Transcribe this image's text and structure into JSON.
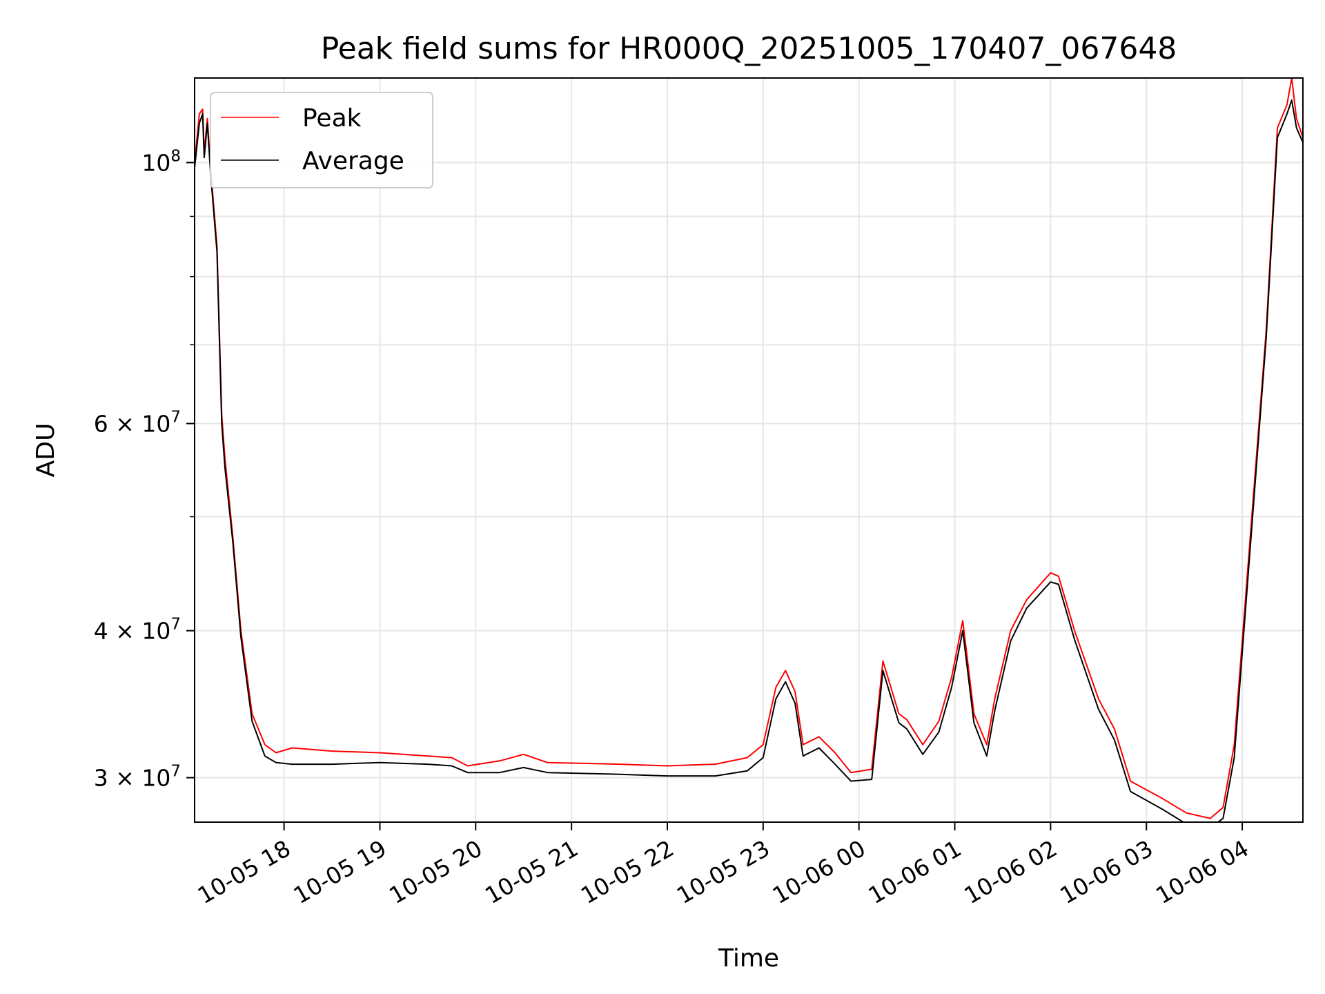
{
  "chart_data": {
    "type": "line",
    "title": "Peak field sums for HR000Q_20251005_170407_067648",
    "xlabel": "Time",
    "ylabel": "ADU",
    "x_axis_type": "time",
    "y_scale": "log",
    "xlim": [
      "2025-10-05 17:04",
      "2025-10-06 04:38"
    ],
    "ylim": [
      27500000,
      118000000
    ],
    "grid": true,
    "legend": {
      "placement": "top-left",
      "entries": [
        "Peak",
        "Average"
      ]
    },
    "x_ticks": [
      "10-05 18",
      "10-05 19",
      "10-05 20",
      "10-05 21",
      "10-05 22",
      "10-05 23",
      "10-06 00",
      "10-06 01",
      "10-06 02",
      "10-06 03",
      "10-06 04"
    ],
    "y_ticks": [
      {
        "value": 30000000,
        "mantissa": "3",
        "exponent": "7"
      },
      {
        "value": 40000000,
        "mantissa": "4",
        "exponent": "7"
      },
      {
        "value": 60000000,
        "mantissa": "6",
        "exponent": "7"
      },
      {
        "value": 100000000,
        "mantissa": "",
        "exponent": "8"
      }
    ],
    "y_minor_ticks": [
      50000000,
      70000000,
      80000000,
      90000000
    ],
    "series": [
      {
        "name": "Peak",
        "color": "#ff0000",
        "x": [
          "2025-10-05 17:04",
          "2025-10-05 17:07",
          "2025-10-05 17:09",
          "2025-10-05 17:10",
          "2025-10-05 17:12",
          "2025-10-05 17:14",
          "2025-10-05 17:18",
          "2025-10-05 17:21",
          "2025-10-05 17:23",
          "2025-10-05 17:28",
          "2025-10-05 17:33",
          "2025-10-05 17:40",
          "2025-10-05 17:48",
          "2025-10-05 17:55",
          "2025-10-05 18:05",
          "2025-10-05 18:30",
          "2025-10-05 19:00",
          "2025-10-05 19:30",
          "2025-10-05 19:45",
          "2025-10-05 19:55",
          "2025-10-05 20:15",
          "2025-10-05 20:30",
          "2025-10-05 20:45",
          "2025-10-05 21:30",
          "2025-10-05 22:00",
          "2025-10-05 22:30",
          "2025-10-05 22:50",
          "2025-10-05 23:00",
          "2025-10-05 23:08",
          "2025-10-05 23:14",
          "2025-10-05 23:20",
          "2025-10-05 23:25",
          "2025-10-05 23:35",
          "2025-10-05 23:45",
          "2025-10-05 23:55",
          "2025-10-06 00:08",
          "2025-10-06 00:15",
          "2025-10-06 00:25",
          "2025-10-06 00:30",
          "2025-10-06 00:40",
          "2025-10-06 00:50",
          "2025-10-06 00:58",
          "2025-10-06 01:05",
          "2025-10-06 01:12",
          "2025-10-06 01:20",
          "2025-10-06 01:25",
          "2025-10-06 01:35",
          "2025-10-06 01:45",
          "2025-10-06 02:00",
          "2025-10-06 02:05",
          "2025-10-06 02:15",
          "2025-10-06 02:30",
          "2025-10-06 02:40",
          "2025-10-06 02:50",
          "2025-10-06 03:10",
          "2025-10-06 03:25",
          "2025-10-06 03:40",
          "2025-10-06 03:48",
          "2025-10-06 03:55",
          "2025-10-06 04:05",
          "2025-10-06 04:15",
          "2025-10-06 04:22",
          "2025-10-06 04:28",
          "2025-10-06 04:31",
          "2025-10-06 04:34",
          "2025-10-06 04:38"
        ],
        "values": [
          100000000,
          110000000,
          111000000,
          102000000,
          109000000,
          99000000,
          85000000,
          61000000,
          56000000,
          48000000,
          40000000,
          34000000,
          32000000,
          31500000,
          31800000,
          31600000,
          31500000,
          31300000,
          31200000,
          30700000,
          31000000,
          31400000,
          30900000,
          30800000,
          30700000,
          30800000,
          31200000,
          32000000,
          35800000,
          37000000,
          35500000,
          32000000,
          32500000,
          31500000,
          30300000,
          30500000,
          37700000,
          34000000,
          33600000,
          32000000,
          33500000,
          36500000,
          40800000,
          34000000,
          32000000,
          35000000,
          40000000,
          42500000,
          44800000,
          44500000,
          40000000,
          35000000,
          33000000,
          29800000,
          28800000,
          28000000,
          27700000,
          28300000,
          32000000,
          48000000,
          72000000,
          107000000,
          112000000,
          118000000,
          109000000,
          105000000
        ]
      },
      {
        "name": "Average",
        "color": "#000000",
        "x": [
          "2025-10-05 17:04",
          "2025-10-05 17:07",
          "2025-10-05 17:09",
          "2025-10-05 17:10",
          "2025-10-05 17:12",
          "2025-10-05 17:14",
          "2025-10-05 17:18",
          "2025-10-05 17:21",
          "2025-10-05 17:23",
          "2025-10-05 17:28",
          "2025-10-05 17:33",
          "2025-10-05 17:40",
          "2025-10-05 17:48",
          "2025-10-05 17:55",
          "2025-10-05 18:05",
          "2025-10-05 18:30",
          "2025-10-05 19:00",
          "2025-10-05 19:30",
          "2025-10-05 19:45",
          "2025-10-05 19:55",
          "2025-10-05 20:15",
          "2025-10-05 20:30",
          "2025-10-05 20:45",
          "2025-10-05 21:30",
          "2025-10-05 22:00",
          "2025-10-05 22:30",
          "2025-10-05 22:50",
          "2025-10-05 23:00",
          "2025-10-05 23:08",
          "2025-10-05 23:14",
          "2025-10-05 23:20",
          "2025-10-05 23:25",
          "2025-10-05 23:35",
          "2025-10-05 23:45",
          "2025-10-05 23:55",
          "2025-10-06 00:08",
          "2025-10-06 00:15",
          "2025-10-06 00:25",
          "2025-10-06 00:30",
          "2025-10-06 00:40",
          "2025-10-06 00:50",
          "2025-10-06 00:58",
          "2025-10-06 01:05",
          "2025-10-06 01:12",
          "2025-10-06 01:20",
          "2025-10-06 01:25",
          "2025-10-06 01:35",
          "2025-10-06 01:45",
          "2025-10-06 02:00",
          "2025-10-06 02:05",
          "2025-10-06 02:15",
          "2025-10-06 02:30",
          "2025-10-06 02:40",
          "2025-10-06 02:50",
          "2025-10-06 03:10",
          "2025-10-06 03:25",
          "2025-10-06 03:40",
          "2025-10-06 03:48",
          "2025-10-06 03:55",
          "2025-10-06 04:05",
          "2025-10-06 04:15",
          "2025-10-06 04:22",
          "2025-10-06 04:28",
          "2025-10-06 04:31",
          "2025-10-06 04:34",
          "2025-10-06 04:38"
        ],
        "values": [
          99000000,
          108000000,
          110000000,
          101000000,
          108000000,
          98000000,
          84000000,
          60000000,
          55000000,
          47500000,
          39500000,
          33500000,
          31300000,
          30900000,
          30800000,
          30800000,
          30900000,
          30800000,
          30700000,
          30300000,
          30300000,
          30600000,
          30300000,
          30200000,
          30100000,
          30100000,
          30400000,
          31200000,
          35000000,
          36200000,
          34700000,
          31300000,
          31800000,
          30800000,
          29800000,
          29900000,
          37000000,
          33400000,
          33000000,
          31400000,
          32800000,
          35800000,
          40000000,
          33400000,
          31300000,
          34200000,
          39200000,
          41800000,
          44000000,
          43800000,
          39300000,
          34300000,
          32300000,
          29200000,
          28200000,
          27400000,
          27200000,
          27700000,
          31200000,
          47000000,
          71000000,
          105000000,
          110000000,
          113000000,
          107000000,
          104000000
        ]
      }
    ]
  }
}
